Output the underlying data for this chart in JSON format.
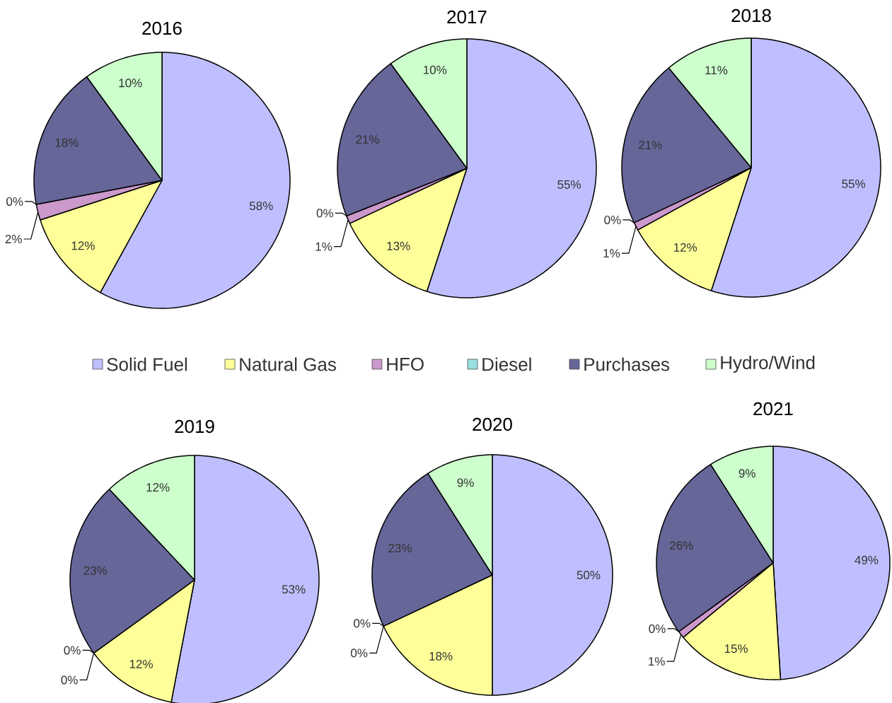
{
  "chart_data": [
    {
      "type": "pie",
      "title": "2016",
      "categories": [
        null,
        null,
        null,
        null,
        null,
        null
      ],
      "values": [
        58,
        12,
        2,
        0,
        18,
        10
      ],
      "value_labels": [
        "58%",
        "12%",
        "2%",
        "0%",
        "18%",
        "10%"
      ],
      "colors": [
        "#bfbfff",
        "#ffff99",
        "#cc99cc",
        "#99e0e0",
        "#666699",
        "#ccffcc"
      ]
    },
    {
      "type": "pie",
      "title": "2017",
      "categories": [
        "Solid Fuel",
        "Natural Gas",
        "HFO",
        "Diesel",
        "Purchases",
        "Hydro/Wind"
      ],
      "values": [
        55,
        13,
        1,
        0,
        21,
        10
      ],
      "value_labels": [
        "55%",
        "13%",
        "1%",
        "0%",
        "21%",
        "10%"
      ],
      "colors": [
        "#bfbfff",
        "#ffff99",
        "#cc99cc",
        "#99e0e0",
        "#666699",
        "#ccffcc"
      ],
      "legend": "bottom"
    },
    {
      "type": "pie",
      "title": "2018",
      "categories": [
        null,
        null,
        null,
        null,
        null,
        null
      ],
      "values": [
        55,
        12,
        1,
        0,
        21,
        11
      ],
      "value_labels": [
        "55%",
        "12%",
        "1%",
        "0%",
        "21%",
        "11%"
      ],
      "colors": [
        "#bfbfff",
        "#ffff99",
        "#cc99cc",
        "#99e0e0",
        "#666699",
        "#ccffcc"
      ]
    },
    {
      "type": "pie",
      "title": "2019",
      "categories": [
        null,
        null,
        null,
        null,
        null,
        null
      ],
      "values": [
        53,
        12,
        0,
        0,
        23,
        12
      ],
      "value_labels": [
        "53%",
        "12%",
        "0%",
        "0%",
        "23%",
        "12%"
      ],
      "colors": [
        "#bfbfff",
        "#ffff99",
        "#cc99cc",
        "#99e0e0",
        "#666699",
        "#ccffcc"
      ]
    },
    {
      "type": "pie",
      "title": "2020",
      "categories": [
        null,
        null,
        null,
        null,
        null,
        null
      ],
      "values": [
        50,
        18,
        0,
        0,
        23,
        9
      ],
      "value_labels": [
        "50%",
        "18%",
        "0%",
        "0%",
        "23%",
        "9%"
      ],
      "colors": [
        "#bfbfff",
        "#ffff99",
        "#cc99cc",
        "#99e0e0",
        "#666699",
        "#ccffcc"
      ]
    },
    {
      "type": "pie",
      "title": "2021",
      "categories": [
        null,
        null,
        null,
        null,
        null,
        null
      ],
      "values": [
        49,
        15,
        1,
        0,
        26,
        9
      ],
      "value_labels": [
        "49%",
        "15%",
        "1%",
        "0%",
        "26%",
        "9%"
      ],
      "colors": [
        "#bfbfff",
        "#ffff99",
        "#cc99cc",
        "#99e0e0",
        "#666699",
        "#ccffcc"
      ]
    }
  ]
}
